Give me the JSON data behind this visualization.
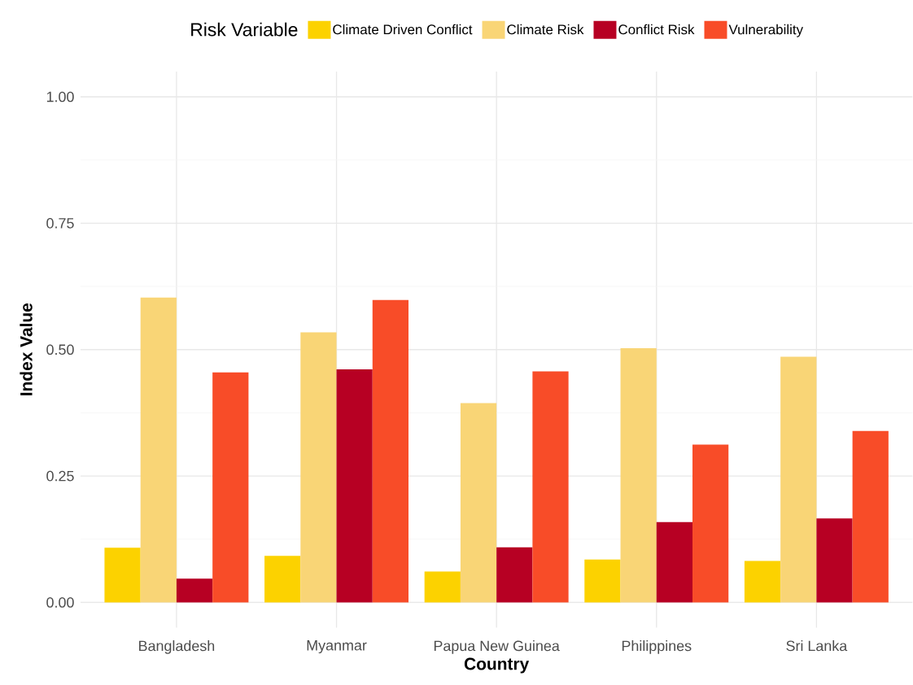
{
  "chart_data": {
    "type": "bar",
    "categories": [
      "Bangladesh",
      "Myanmar",
      "Papua New Guinea",
      "Philippines",
      "Sri Lanka"
    ],
    "xlabel": "Country",
    "ylabel": "Index Value",
    "legend_title": "Risk Variable",
    "series": [
      {
        "name": "Climate Driven Conflict",
        "color": "#fcd200",
        "values": [
          0.108,
          0.092,
          0.061,
          0.085,
          0.082
        ]
      },
      {
        "name": "Climate Risk",
        "color": "#f9d576",
        "values": [
          0.603,
          0.534,
          0.394,
          0.503,
          0.486
        ]
      },
      {
        "name": "Conflict Risk",
        "color": "#b70023",
        "values": [
          0.047,
          0.461,
          0.109,
          0.159,
          0.166
        ]
      },
      {
        "name": "Vulnerability",
        "color": "#f84c28",
        "values": [
          0.455,
          0.598,
          0.457,
          0.312,
          0.339
        ]
      }
    ],
    "ylim": [
      -0.05,
      1.05
    ],
    "yticks": [
      {
        "value": 0,
        "label": "0.00"
      },
      {
        "value": 0.125,
        "label": null
      },
      {
        "value": 0.25,
        "label": "0.25"
      },
      {
        "value": 0.375,
        "label": null
      },
      {
        "value": 0.5,
        "label": "0.50"
      },
      {
        "value": 0.625,
        "label": null
      },
      {
        "value": 0.75,
        "label": "0.75"
      },
      {
        "value": 0.875,
        "label": null
      },
      {
        "value": 1,
        "label": "1.00"
      }
    ],
    "grid": true,
    "legend": "top"
  }
}
